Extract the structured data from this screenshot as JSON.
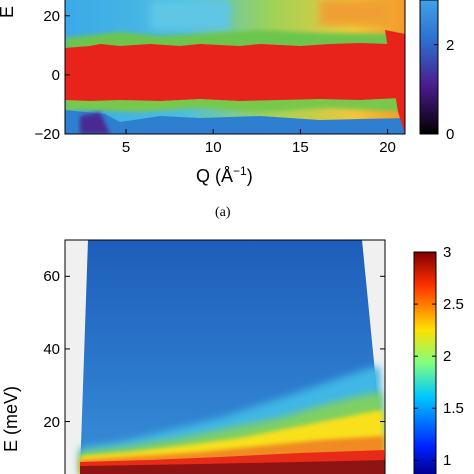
{
  "chart_data": [
    {
      "type": "heatmap",
      "panel_label": "(a)",
      "xlabel_base": "Q (",
      "xlabel_unit": "Å",
      "xlabel_exp": "−1",
      "xlabel_close": ")",
      "ylabel": "E (",
      "x_ticks": [
        "5",
        "10",
        "15",
        "20"
      ],
      "x_tick_values": [
        5,
        10,
        15,
        20
      ],
      "y_ticks": [
        "20",
        "0",
        "−20"
      ],
      "y_tick_values": [
        20,
        0,
        -20
      ],
      "xlim": [
        1.5,
        21
      ],
      "ylim": [
        -20,
        26
      ],
      "colorbar_ticks": [
        "2",
        "0"
      ],
      "colorbar_tick_values": [
        2,
        0
      ],
      "colorbar_range": [
        0,
        3
      ],
      "colormap": "jet-like",
      "colors": {
        "elastic": "#e8231c",
        "mid": "#7ec84a",
        "low": "#2f86d6",
        "high": "#f3a028",
        "dark": "#3b1f6e"
      }
    },
    {
      "type": "heatmap",
      "ylabel": "E (meV)",
      "y_ticks": [
        "60",
        "40",
        "20"
      ],
      "y_tick_values": [
        60,
        40,
        20
      ],
      "ylim": [
        5,
        70
      ],
      "colorbar_ticks": [
        "3",
        "2.5",
        "2",
        "1.5",
        "1"
      ],
      "colorbar_tick_values": [
        3,
        2.5,
        2,
        1.5,
        1
      ],
      "colorbar_range": [
        0.85,
        3
      ],
      "colormap": "jet-like",
      "colors": {
        "background": "#2468c2",
        "band": "#f8e01e",
        "elastic": "#8e1414",
        "mask": "#f0f0f0"
      }
    }
  ]
}
